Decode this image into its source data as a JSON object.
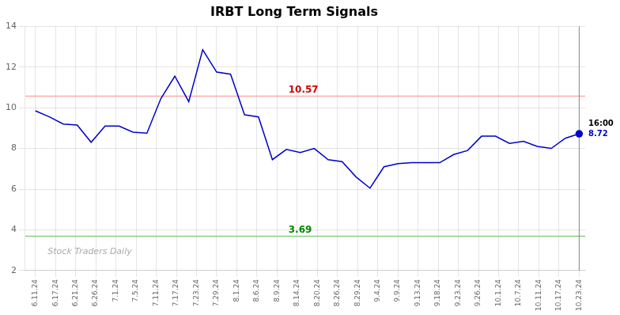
{
  "chart_data": {
    "type": "line",
    "title": "IRBT Long Term Signals",
    "x": [
      0,
      0.6923076923076923,
      1.3846153846153846,
      2.076923076923077,
      2.769230769230769,
      3.4615384615384617,
      4.153846153846154,
      4.846153846153846,
      5.538461538461538,
      6.230769230769231,
      6.923076923076923,
      7.615384615384615,
      8.307692307692308,
      9,
      9.692307692307692,
      10.384615384615385,
      11.076923076923077,
      11.76923076923077,
      12.461538461538462,
      13.153846153846153,
      13.846153846153847,
      14.538461538461538,
      15.23076923076923,
      15.923076923076923,
      16.615384615384617,
      17.307692307692307,
      18,
      18.692307692307693,
      19.384615384615383,
      20.076923076923077,
      20.76923076923077,
      21.46153846153846,
      22.153846153846153,
      22.846153846153847,
      23.53846153846154,
      24.23076923076923,
      24.923076923076923,
      25.615384615384617,
      26.307692307692307,
      27
    ],
    "series": [
      {
        "color": "#0000cc",
        "marker": "last",
        "values": [
          9.85,
          9.55,
          9.2,
          9.15,
          8.3,
          9.1,
          9.1,
          8.8,
          8.75,
          10.45,
          11.55,
          10.3,
          12.85,
          11.75,
          11.65,
          9.65,
          9.55,
          7.45,
          7.95,
          7.8,
          8.0,
          7.45,
          7.35,
          6.6,
          6.05,
          7.1,
          7.25,
          7.3,
          7.3,
          7.3,
          7.7,
          7.9,
          8.6,
          8.6,
          8.25,
          8.35,
          8.1,
          8.0,
          8.5,
          8.72
        ]
      }
    ],
    "xlim": [
      -0.5,
      27.3
    ],
    "xticks": [
      {
        "value": 0,
        "label": "6.11.24"
      },
      {
        "value": 1,
        "label": "6.17.24"
      },
      {
        "value": 2,
        "label": "6.21.24"
      },
      {
        "value": 3,
        "label": "6.26.24"
      },
      {
        "value": 4,
        "label": "7.1.24"
      },
      {
        "value": 5,
        "label": "7.5.24"
      },
      {
        "value": 6,
        "label": "7.11.24"
      },
      {
        "value": 7,
        "label": "7.17.24"
      },
      {
        "value": 8,
        "label": "7.23.24"
      },
      {
        "value": 9,
        "label": "7.29.24"
      },
      {
        "value": 10,
        "label": "8.1.24"
      },
      {
        "value": 11,
        "label": "8.6.24"
      },
      {
        "value": 12,
        "label": "8.9.24"
      },
      {
        "value": 13,
        "label": "8.14.24"
      },
      {
        "value": 14,
        "label": "8.20.24"
      },
      {
        "value": 15,
        "label": "8.26.24"
      },
      {
        "value": 16,
        "label": "8.29.24"
      },
      {
        "value": 17,
        "label": "9.4.24"
      },
      {
        "value": 18,
        "label": "9.9.24"
      },
      {
        "value": 19,
        "label": "9.13.24"
      },
      {
        "value": 20,
        "label": "9.18.24"
      },
      {
        "value": 21,
        "label": "9.23.24"
      },
      {
        "value": 22,
        "label": "9.26.24"
      },
      {
        "value": 23,
        "label": "10.1.24"
      },
      {
        "value": 24,
        "label": "10.7.24"
      },
      {
        "value": 25,
        "label": "10.11.24"
      },
      {
        "value": 26,
        "label": "10.17.24"
      },
      {
        "value": 27,
        "label": "10.23.24"
      }
    ],
    "ylim": [
      2,
      14
    ],
    "yticks": [
      2,
      4,
      6,
      8,
      10,
      12,
      14
    ],
    "grid": true,
    "hlines": [
      {
        "value": 10.57,
        "color": "#ffaaaa",
        "label": "10.57",
        "label_color": "#cc0000"
      },
      {
        "value": 3.69,
        "color": "#88cc88",
        "label": "3.69",
        "label_color": "#008800"
      }
    ],
    "vlines": [
      {
        "value": 27,
        "color": "#888888"
      }
    ],
    "annotations": [
      {
        "text": "16:00",
        "x": 27,
        "y": 8.72,
        "color": "#000000"
      },
      {
        "text": "8.72",
        "x": 27,
        "y": 8.72,
        "color": "#0000cc"
      }
    ],
    "watermark": "Stock Traders Daily"
  }
}
